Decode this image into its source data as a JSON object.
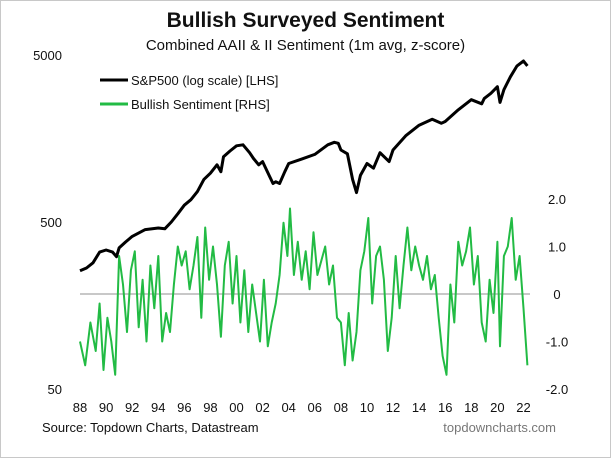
{
  "header": {
    "title": "Bullish Surveyed Sentiment",
    "subtitle": "Combined AAII & II Sentiment (1m avg, z-score)"
  },
  "footer": {
    "source": "Source: Topdown Charts, Datastream",
    "site": "topdowncharts.com"
  },
  "chart_data": {
    "type": "line",
    "title": "Bullish Surveyed Sentiment",
    "subtitle": "Combined AAII & II Sentiment (1m avg, z-score)",
    "x_ticks": [
      "88",
      "90",
      "92",
      "94",
      "96",
      "98",
      "00",
      "02",
      "04",
      "06",
      "08",
      "10",
      "12",
      "14",
      "16",
      "18",
      "20",
      "22"
    ],
    "x_range": [
      1988,
      2022.5
    ],
    "y_left": {
      "scale": "log",
      "range": [
        50,
        5000
      ],
      "ticks": [
        50,
        500,
        5000
      ],
      "tick_labels": [
        "50",
        "500",
        "5000"
      ]
    },
    "y_right": {
      "scale": "linear",
      "range": [
        -2.0,
        2.0
      ],
      "ticks": [
        2.0,
        1.0,
        0,
        -1.0,
        -2.0
      ],
      "tick_labels": [
        "2.0",
        "1.0",
        "0",
        "-1.0",
        "-2.0"
      ]
    },
    "zero_line": true,
    "grid": false,
    "legend": {
      "position": "top-left"
    },
    "colors": {
      "sp500": "#000000",
      "sentiment": "#22bb44",
      "zero_line": "#b5b5b5"
    },
    "series": [
      {
        "name": "S&P500 (log scale) [LHS]",
        "axis": "left",
        "x": [
          1988.0,
          1988.5,
          1989.0,
          1989.5,
          1990.0,
          1990.5,
          1990.8,
          1991.0,
          1991.5,
          1992.0,
          1993.0,
          1994.0,
          1994.5,
          1995.0,
          1995.5,
          1996.0,
          1996.5,
          1997.0,
          1997.5,
          1998.0,
          1998.5,
          1998.8,
          1999.0,
          1999.5,
          2000.0,
          2000.5,
          2001.0,
          2001.3,
          2001.7,
          2002.0,
          2002.5,
          2002.8,
          2003.0,
          2003.3,
          2003.7,
          2004.0,
          2005.0,
          2006.0,
          2007.0,
          2007.5,
          2007.8,
          2008.0,
          2008.5,
          2008.9,
          2009.2,
          2009.5,
          2010.0,
          2010.5,
          2011.0,
          2011.7,
          2012.0,
          2013.0,
          2014.0,
          2015.0,
          2015.7,
          2016.0,
          2017.0,
          2018.0,
          2018.8,
          2019.0,
          2019.5,
          2020.0,
          2020.2,
          2020.5,
          2021.0,
          2021.5,
          2022.0,
          2022.3
        ],
        "values": [
          255,
          265,
          285,
          330,
          340,
          330,
          310,
          350,
          380,
          410,
          450,
          460,
          455,
          500,
          560,
          630,
          680,
          760,
          900,
          980,
          1100,
          1000,
          1230,
          1330,
          1430,
          1450,
          1300,
          1200,
          1100,
          1150,
          950,
          850,
          870,
          850,
          1000,
          1120,
          1190,
          1270,
          1450,
          1500,
          1480,
          1350,
          1280,
          900,
          750,
          950,
          1120,
          1050,
          1300,
          1150,
          1350,
          1650,
          1900,
          2060,
          1950,
          2000,
          2350,
          2700,
          2550,
          2750,
          2950,
          3230,
          2600,
          3100,
          3700,
          4300,
          4600,
          4300
        ]
      },
      {
        "name": "Bullish Sentiment [RHS]",
        "axis": "right",
        "x": [
          1988.0,
          1988.4,
          1988.8,
          1989.2,
          1989.5,
          1989.8,
          1990.1,
          1990.4,
          1990.7,
          1991.0,
          1991.3,
          1991.6,
          1991.9,
          1992.2,
          1992.5,
          1992.8,
          1993.1,
          1993.4,
          1993.7,
          1994.0,
          1994.3,
          1994.6,
          1994.9,
          1995.2,
          1995.5,
          1995.8,
          1996.1,
          1996.4,
          1996.7,
          1997.0,
          1997.3,
          1997.6,
          1997.9,
          1998.2,
          1998.5,
          1998.8,
          1999.1,
          1999.4,
          1999.7,
          2000.0,
          2000.3,
          2000.6,
          2000.9,
          2001.2,
          2001.5,
          2001.8,
          2002.1,
          2002.4,
          2002.7,
          2003.0,
          2003.3,
          2003.6,
          2003.9,
          2004.1,
          2004.4,
          2004.7,
          2005.0,
          2005.3,
          2005.6,
          2005.9,
          2006.2,
          2006.5,
          2006.8,
          2007.1,
          2007.4,
          2007.7,
          2008.0,
          2008.3,
          2008.6,
          2008.9,
          2009.2,
          2009.5,
          2009.8,
          2010.1,
          2010.4,
          2010.7,
          2011.0,
          2011.3,
          2011.6,
          2011.9,
          2012.2,
          2012.5,
          2012.8,
          2013.1,
          2013.4,
          2013.7,
          2014.0,
          2014.3,
          2014.6,
          2014.9,
          2015.2,
          2015.5,
          2015.8,
          2016.1,
          2016.4,
          2016.7,
          2017.0,
          2017.3,
          2017.6,
          2017.9,
          2018.2,
          2018.5,
          2018.8,
          2019.1,
          2019.4,
          2019.7,
          2020.0,
          2020.2,
          2020.5,
          2020.8,
          2021.1,
          2021.4,
          2021.7,
          2022.0,
          2022.3
        ],
        "values": [
          -1.0,
          -1.5,
          -0.6,
          -1.2,
          -0.2,
          -1.6,
          -0.5,
          -1.0,
          -1.7,
          0.8,
          0.2,
          -0.8,
          0.5,
          0.9,
          -0.7,
          0.3,
          -1.0,
          0.6,
          -0.3,
          0.8,
          -1.0,
          -0.4,
          -0.8,
          0.2,
          1.0,
          0.6,
          0.9,
          0.1,
          0.6,
          1.2,
          -0.5,
          1.4,
          0.3,
          1.0,
          0.2,
          -0.9,
          0.6,
          1.1,
          -0.2,
          0.8,
          -0.6,
          0.5,
          -0.8,
          0.2,
          -0.4,
          -1.0,
          0.3,
          -1.1,
          -0.6,
          -0.2,
          0.4,
          1.5,
          0.8,
          1.8,
          0.4,
          1.1,
          0.3,
          0.9,
          0.1,
          1.3,
          0.4,
          0.7,
          1.0,
          0.2,
          0.6,
          -0.5,
          -0.6,
          -1.5,
          -0.4,
          -1.4,
          -0.8,
          0.5,
          0.9,
          1.6,
          -0.2,
          0.8,
          1.0,
          0.3,
          -1.2,
          -0.5,
          0.8,
          -0.3,
          0.6,
          1.4,
          0.5,
          1.0,
          0.6,
          0.3,
          0.8,
          0.1,
          0.4,
          -0.5,
          -1.3,
          -1.7,
          0.2,
          -0.6,
          1.1,
          0.6,
          0.9,
          1.4,
          0.2,
          0.8,
          -0.6,
          -1.0,
          0.3,
          -0.4,
          1.1,
          -1.1,
          0.8,
          1.0,
          1.6,
          0.3,
          0.8,
          -0.3,
          -1.5
        ]
      }
    ]
  }
}
